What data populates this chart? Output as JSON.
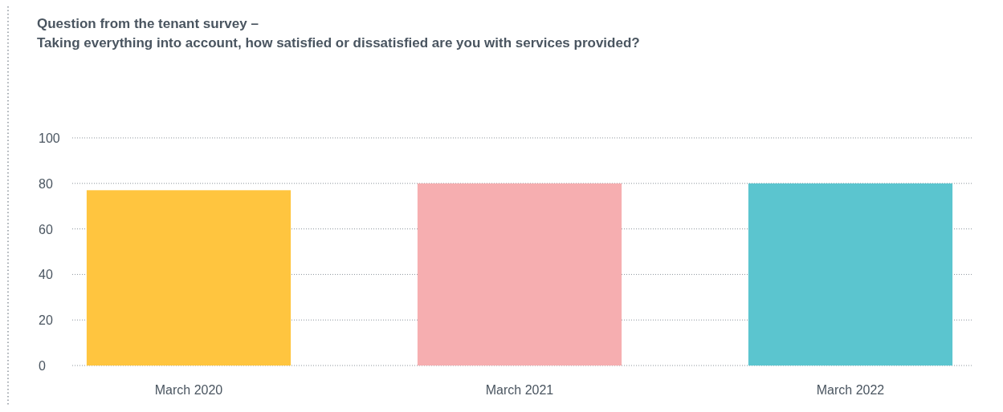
{
  "chart_data": {
    "type": "bar",
    "title": "Question from the tenant survey –",
    "subtitle": "Taking everything into account, how satisfied or dissatisfied are you with services provided?",
    "categories": [
      "March 2020",
      "March 2021",
      "March 2022"
    ],
    "values": [
      77,
      80,
      80
    ],
    "colors": [
      "#ffc53f",
      "#f6aeb0",
      "#5bc5cf"
    ],
    "ylim": [
      0,
      100
    ],
    "yticks": [
      0,
      20,
      40,
      60,
      80,
      100
    ],
    "grid": "y"
  }
}
